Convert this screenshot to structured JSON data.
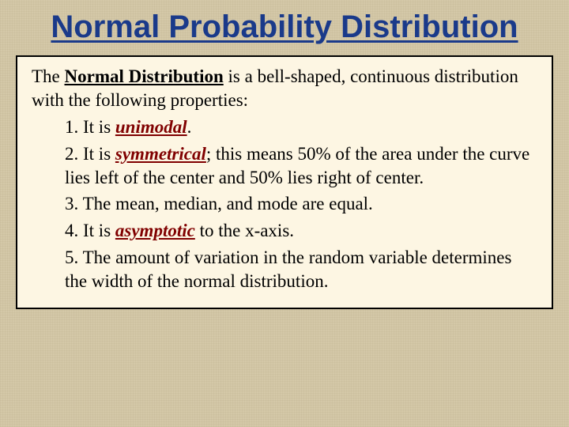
{
  "colors": {
    "background": "#d4c8a8",
    "box_background": "#fdf6e3",
    "box_border": "#000000",
    "title_color": "#1a3a8a",
    "body_text": "#000000",
    "emphasis_color": "#800000"
  },
  "typography": {
    "title_fontsize": 40,
    "title_weight": "bold",
    "title_family": "Verdana",
    "body_fontsize": 23,
    "body_family": "Georgia"
  },
  "title": "Normal Probability Distribution",
  "intro_pre": "The ",
  "intro_key": "Normal Distribution",
  "intro_post": " is a bell-shaped, continuous distribution with the following properties:",
  "items": {
    "i1_pre": "1. It is ",
    "i1_key": "unimodal",
    "i1_post": ".",
    "i2_pre": "2. It is ",
    "i2_key": "symmetrical",
    "i2_post": "; this means 50% of the area under the curve lies left of the center and 50% lies right of center.",
    "i3": "3. The mean, median, and mode are equal.",
    "i4_pre": "4.  It is ",
    "i4_key": "asymptotic",
    "i4_post": " to the x-axis.",
    "i5": "5. The amount of variation in the random variable determines the width of the normal distribution."
  }
}
